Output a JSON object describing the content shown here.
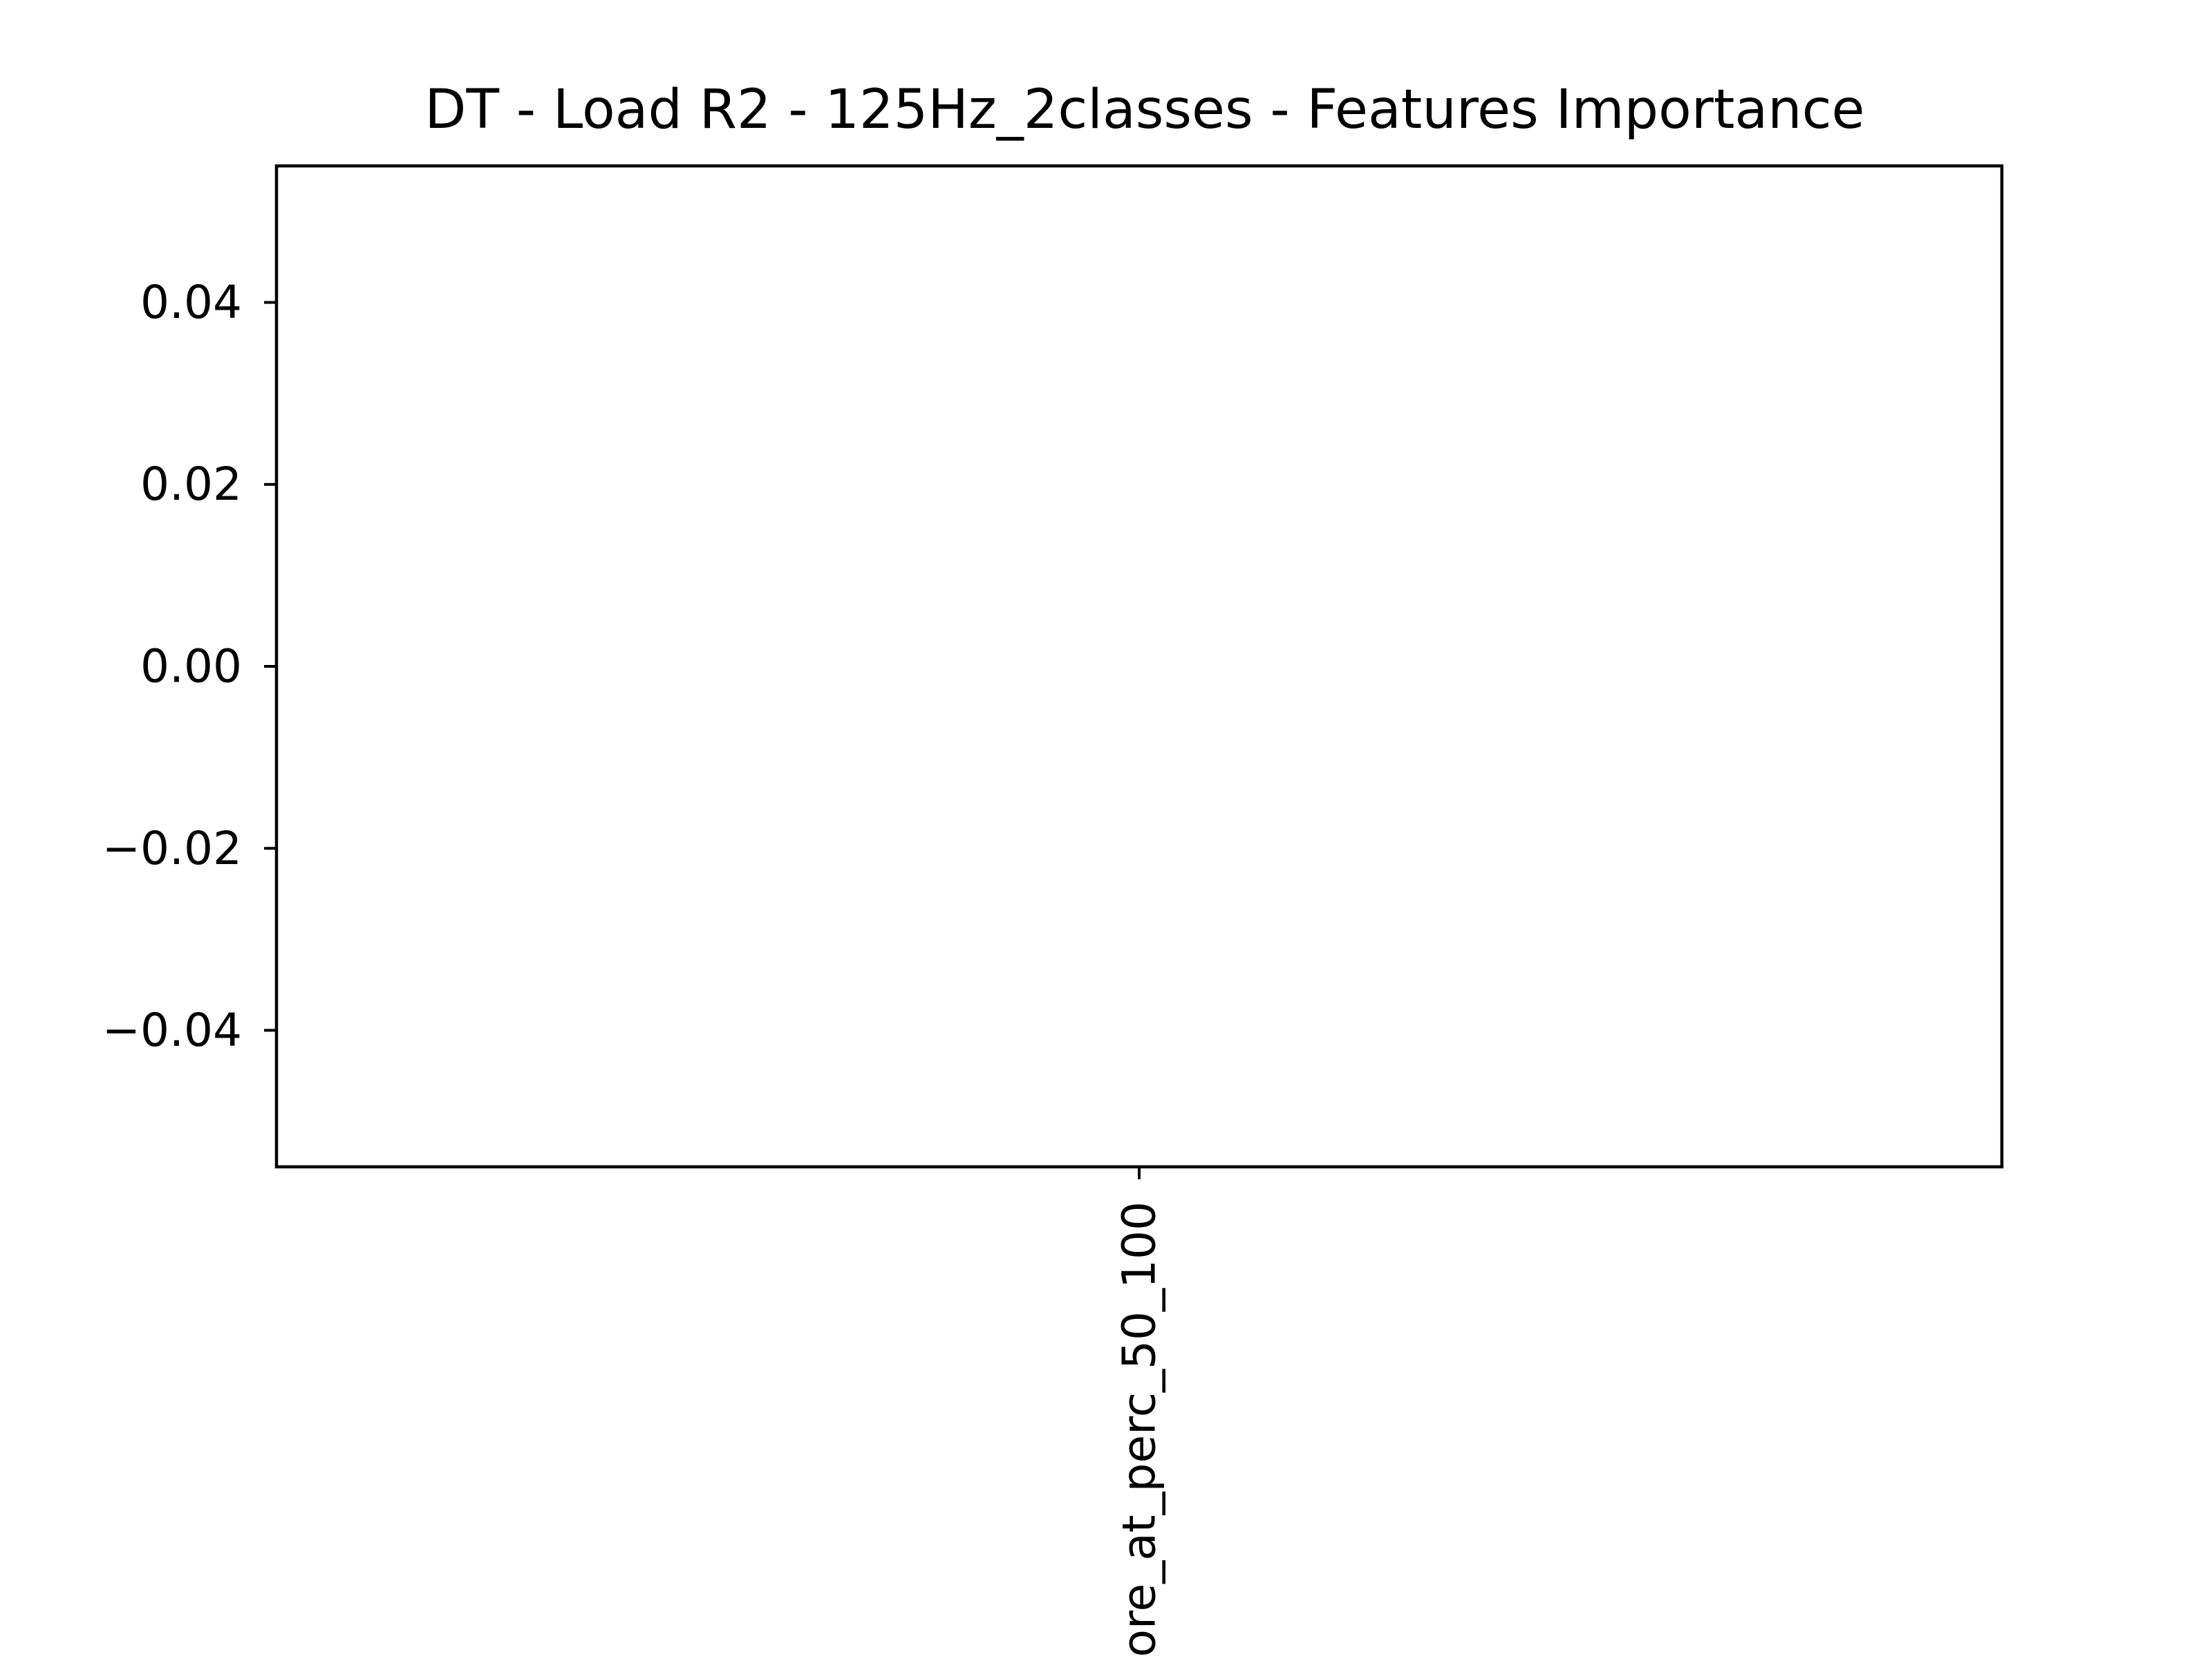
{
  "chart_data": {
    "type": "bar",
    "title": "DT - Load R2 - 125Hz_2classes - Features Importance",
    "xlabel": "",
    "ylabel": "",
    "categories": [
      "ore_at_perc_50_100"
    ],
    "values": [
      0
    ],
    "ylim": [
      -0.055,
      0.055
    ],
    "yticks": [
      -0.04,
      -0.02,
      0.0,
      0.02,
      0.04
    ],
    "ytick_labels": [
      "−0.04",
      "−0.02",
      "0.00",
      "0.02",
      "0.04"
    ],
    "grid": false,
    "legend": "none"
  },
  "colors": {
    "background": "#ffffff",
    "axes": "#000000",
    "text": "#000000"
  }
}
